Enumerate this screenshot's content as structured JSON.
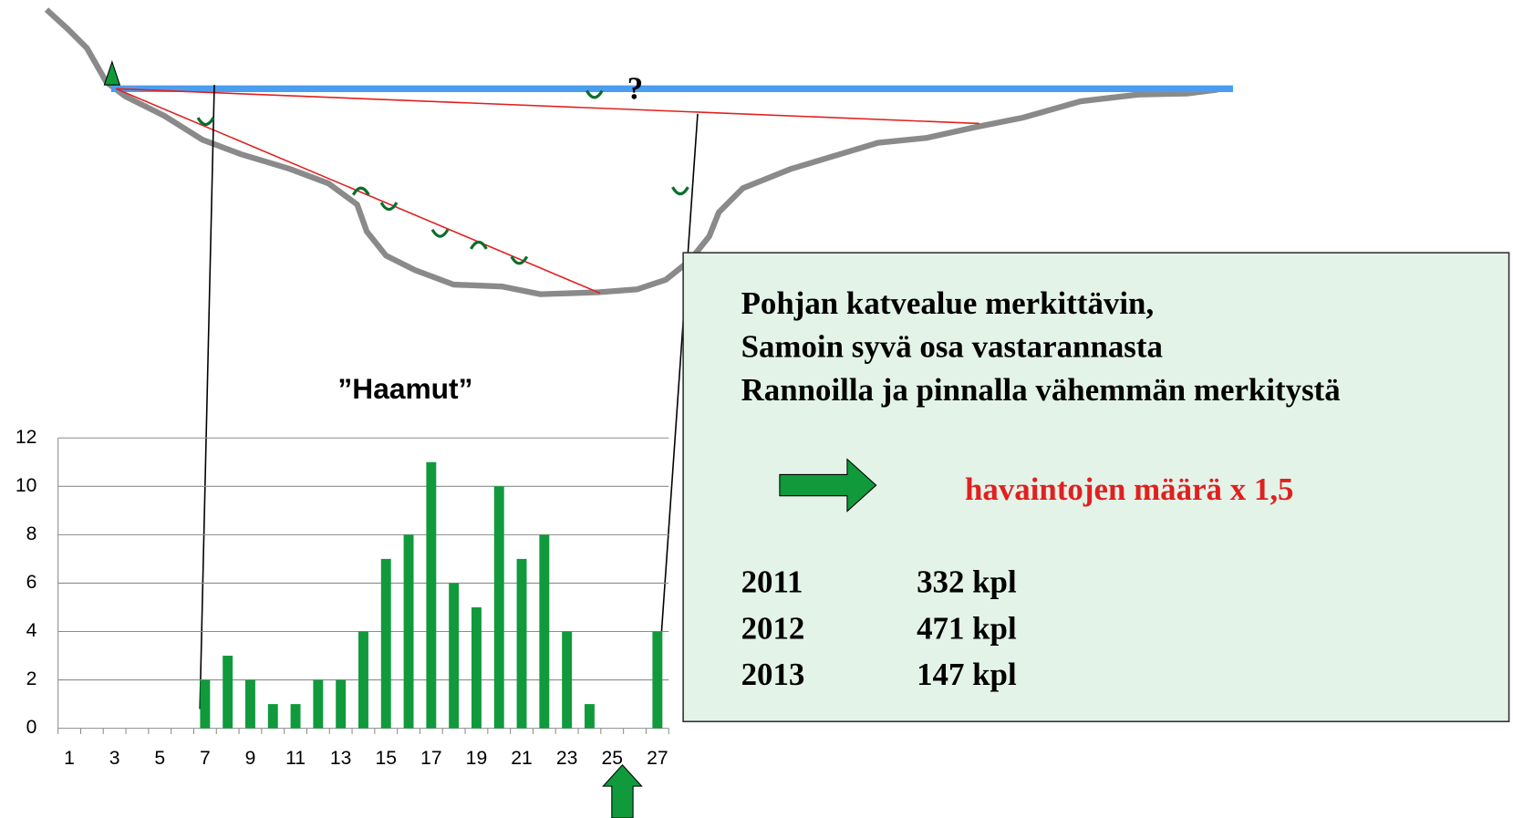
{
  "chart_data": {
    "type": "bar",
    "title": "”Haamut”",
    "categories": [
      1,
      null,
      3,
      null,
      5,
      null,
      7,
      null,
      9,
      null,
      11,
      null,
      13,
      null,
      15,
      null,
      17,
      null,
      19,
      null,
      21,
      null,
      23,
      null,
      25,
      null,
      27
    ],
    "values": [
      0,
      0,
      0,
      0,
      0,
      0,
      2,
      3,
      2,
      1,
      1,
      2,
      2,
      4,
      7,
      8,
      11,
      6,
      5,
      10,
      7,
      8,
      4,
      1,
      0,
      0,
      4
    ],
    "color": "#109a3c",
    "ylim": [
      0,
      12
    ],
    "yticks": [
      0,
      2,
      4,
      6,
      8,
      10,
      12
    ],
    "grid": true
  },
  "diagram": {
    "question": "?"
  },
  "textbox": {
    "lines": [
      "Pohjan katvealue merkittävin,",
      "Samoin syvä osa vastarannasta",
      "Rannoilla ja pinnalla vähemmän merkitystä"
    ],
    "highlight": "havaintojen määrä x 1,5",
    "rows": [
      [
        "2011",
        "332 kpl"
      ],
      [
        "2012",
        "471 kpl"
      ],
      [
        "2013",
        "147 kpl"
      ]
    ]
  }
}
